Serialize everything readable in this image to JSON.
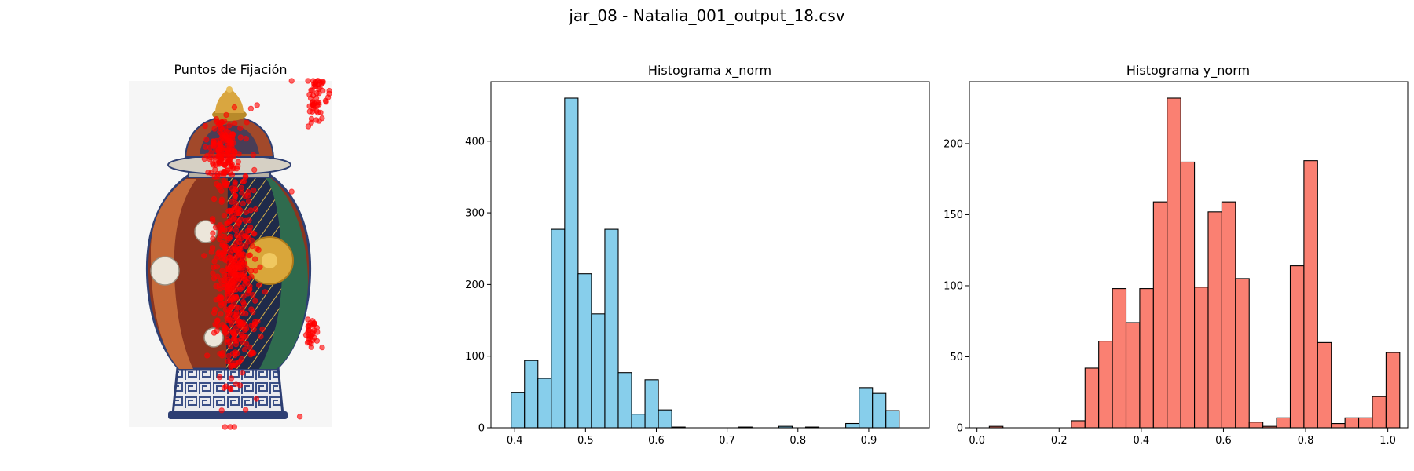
{
  "figure": {
    "suptitle": "jar_08 - Natalia_001_output_18.csv"
  },
  "colors": {
    "hist_x": "#87ceeb",
    "hist_y": "#fa8072",
    "fixation": "#ff0000",
    "edge": "#000000"
  },
  "chart_data": [
    {
      "type": "scatter",
      "title": "Puntos de Fijación",
      "background": "image of a decorated porcelain ginger jar (jar_08)",
      "xlim": [
        0,
        1
      ],
      "ylim": [
        0,
        1
      ],
      "y_origin": "top",
      "clusters": [
        {
          "cx": 0.92,
          "cy": 0.03,
          "sx": 0.025,
          "sy": 0.03,
          "n": 40
        },
        {
          "cx": 0.91,
          "cy": 0.1,
          "sx": 0.02,
          "sy": 0.02,
          "n": 14
        },
        {
          "cx": 0.46,
          "cy": 0.2,
          "sx": 0.035,
          "sy": 0.045,
          "n": 150
        },
        {
          "cx": 0.52,
          "cy": 0.55,
          "sx": 0.05,
          "sy": 0.16,
          "n": 420
        },
        {
          "cx": 0.9,
          "cy": 0.73,
          "sx": 0.02,
          "sy": 0.025,
          "n": 30
        }
      ],
      "points": [
        {
          "x": 0.8,
          "y": 0.0
        },
        {
          "x": 0.63,
          "y": 0.07
        },
        {
          "x": 0.6,
          "y": 0.08
        },
        {
          "x": 0.58,
          "y": 0.12
        },
        {
          "x": 0.8,
          "y": 0.32
        },
        {
          "x": 0.91,
          "y": 0.7
        },
        {
          "x": 0.95,
          "y": 0.77
        },
        {
          "x": 0.84,
          "y": 0.97
        }
      ]
    },
    {
      "type": "bar",
      "title": "Histograma x_norm",
      "bin_start": 0.395,
      "bin_width": 0.0189,
      "values": [
        49,
        94,
        69,
        277,
        460,
        215,
        159,
        277,
        77,
        19,
        67,
        25,
        1,
        0,
        0,
        0,
        0,
        1,
        0,
        0,
        2,
        0,
        1,
        0,
        0,
        6,
        56,
        48,
        24
      ],
      "xlim": [
        0.3665,
        0.9855
      ],
      "ylim": [
        0,
        483
      ],
      "xticks": [
        0.4,
        0.5,
        0.6,
        0.7,
        0.8,
        0.9
      ],
      "xtick_labels": [
        "0.4",
        "0.5",
        "0.6",
        "0.7",
        "0.8",
        "0.9"
      ],
      "yticks": [
        0,
        100,
        200,
        300,
        400
      ],
      "ytick_labels": [
        "0",
        "100",
        "200",
        "300",
        "400"
      ]
    },
    {
      "type": "bar",
      "title": "Histograma y_norm",
      "bin_start": 0.03,
      "bin_width": 0.0333,
      "values": [
        1,
        0,
        0,
        0,
        0,
        0,
        5,
        42,
        61,
        98,
        74,
        98,
        159,
        232,
        187,
        99,
        152,
        159,
        105,
        4,
        1,
        7,
        114,
        188,
        60,
        3,
        7,
        7,
        22,
        53
      ],
      "xlim": [
        -0.0185,
        1.0485
      ],
      "ylim": [
        0,
        243.6
      ],
      "xticks": [
        0.0,
        0.2,
        0.4,
        0.6,
        0.8,
        1.0
      ],
      "xtick_labels": [
        "0.0",
        "0.2",
        "0.4",
        "0.6",
        "0.8",
        "1.0"
      ],
      "yticks": [
        0,
        50,
        100,
        150,
        200
      ],
      "ytick_labels": [
        "0",
        "50",
        "100",
        "150",
        "200"
      ]
    }
  ]
}
